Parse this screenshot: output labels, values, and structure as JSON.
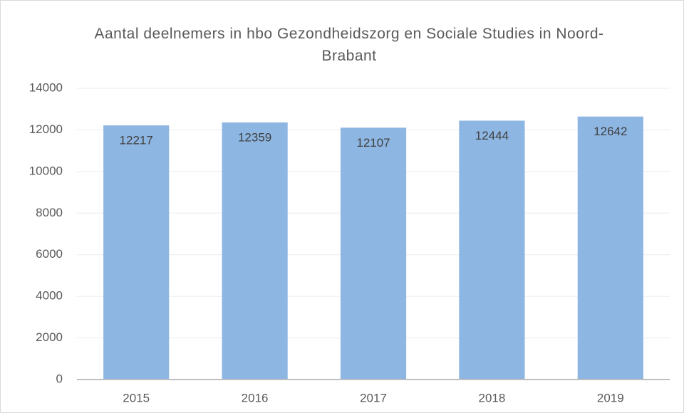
{
  "chart_data": {
    "type": "bar",
    "title": "Aantal deelnemers in hbo Gezondheidszorg en Sociale Studies in Noord-Brabant",
    "categories": [
      "2015",
      "2016",
      "2017",
      "2018",
      "2019"
    ],
    "values": [
      12217,
      12359,
      12107,
      12444,
      12642
    ],
    "color": "#8db6e2",
    "ylim": [
      0,
      14000
    ],
    "yticks": [
      0,
      2000,
      4000,
      6000,
      8000,
      10000,
      12000,
      14000
    ],
    "grid": true
  }
}
